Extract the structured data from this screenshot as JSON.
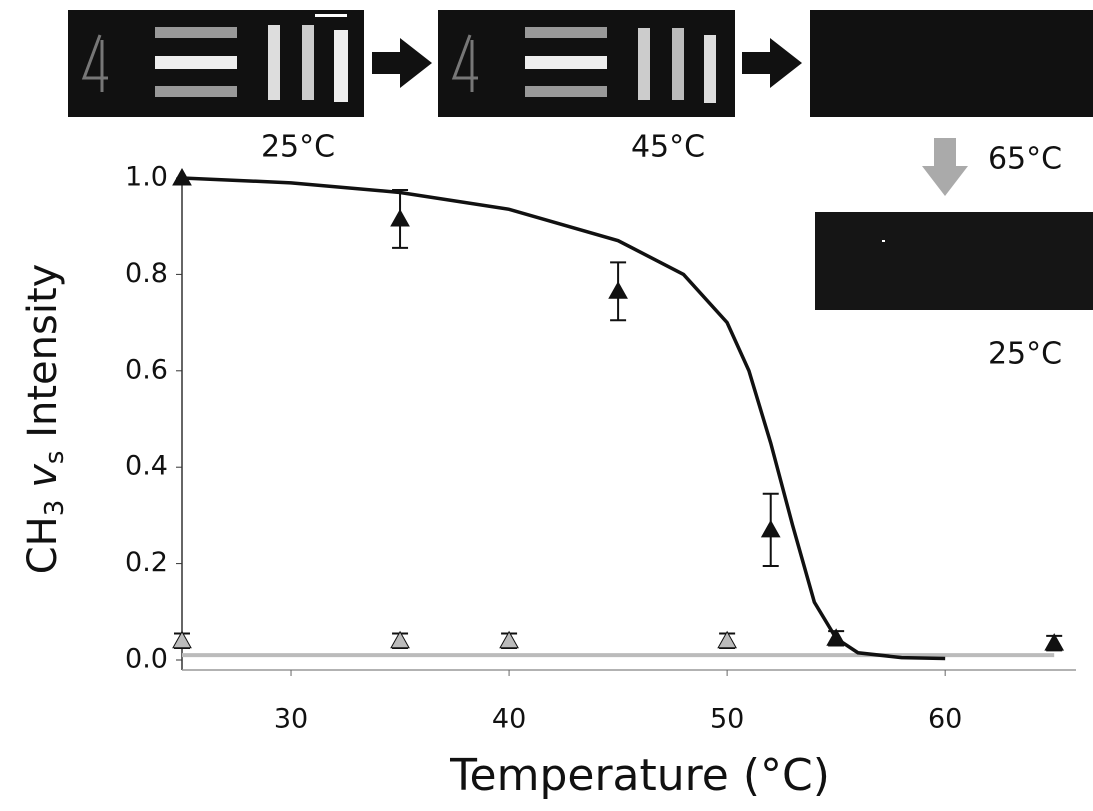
{
  "insets": [
    "25°C",
    "45°C",
    "65°C",
    "25°C"
  ],
  "chart_data": {
    "type": "scatter",
    "x_label": "Temperature (°C)",
    "y_label": [
      "CH",
      "3",
      "v",
      "s",
      " Intensity"
    ],
    "xlim": [
      25,
      66
    ],
    "ylim": [
      0,
      1
    ],
    "xticks": [
      30,
      40,
      50,
      60
    ],
    "yticks": [
      {
        "value": 0,
        "label": "0.0"
      },
      {
        "value": 0.2,
        "label": "0.2"
      },
      {
        "value": 0.4,
        "label": "0.4"
      },
      {
        "value": 0.6,
        "label": "0.6"
      },
      {
        "value": 0.8,
        "label": "0.8"
      },
      {
        "value": 1,
        "label": "1.0"
      }
    ],
    "lines": [
      {
        "color": "#bbbbbb",
        "x": [
          25,
          35,
          45,
          55,
          65
        ],
        "values": [
          0.01,
          0.01,
          0.01,
          0.01,
          0.01
        ]
      },
      {
        "color": "#111111",
        "x": [
          25,
          30,
          35,
          40,
          45,
          48,
          50,
          51,
          52,
          53,
          54,
          55,
          56,
          58,
          60
        ],
        "values": [
          1.0,
          0.99,
          0.97,
          0.935,
          0.87,
          0.8,
          0.7,
          0.6,
          0.45,
          0.28,
          0.12,
          0.045,
          0.015,
          0.005,
          0.003
        ]
      }
    ],
    "series": [
      {
        "color": "#bbbbbb",
        "x": [
          25,
          35,
          40,
          50
        ],
        "values": [
          0.04,
          0.04,
          0.04,
          0.04
        ],
        "errors": [
          0.015,
          0.015,
          0.015,
          0.015
        ]
      },
      {
        "color": "#111111",
        "x": [
          25,
          35,
          45,
          52,
          55,
          65
        ],
        "values": [
          1.0,
          0.915,
          0.765,
          0.27,
          0.045,
          0.035
        ],
        "errors": [
          0,
          0.06,
          0.06,
          0.075,
          0.015,
          0.015
        ]
      }
    ]
  }
}
